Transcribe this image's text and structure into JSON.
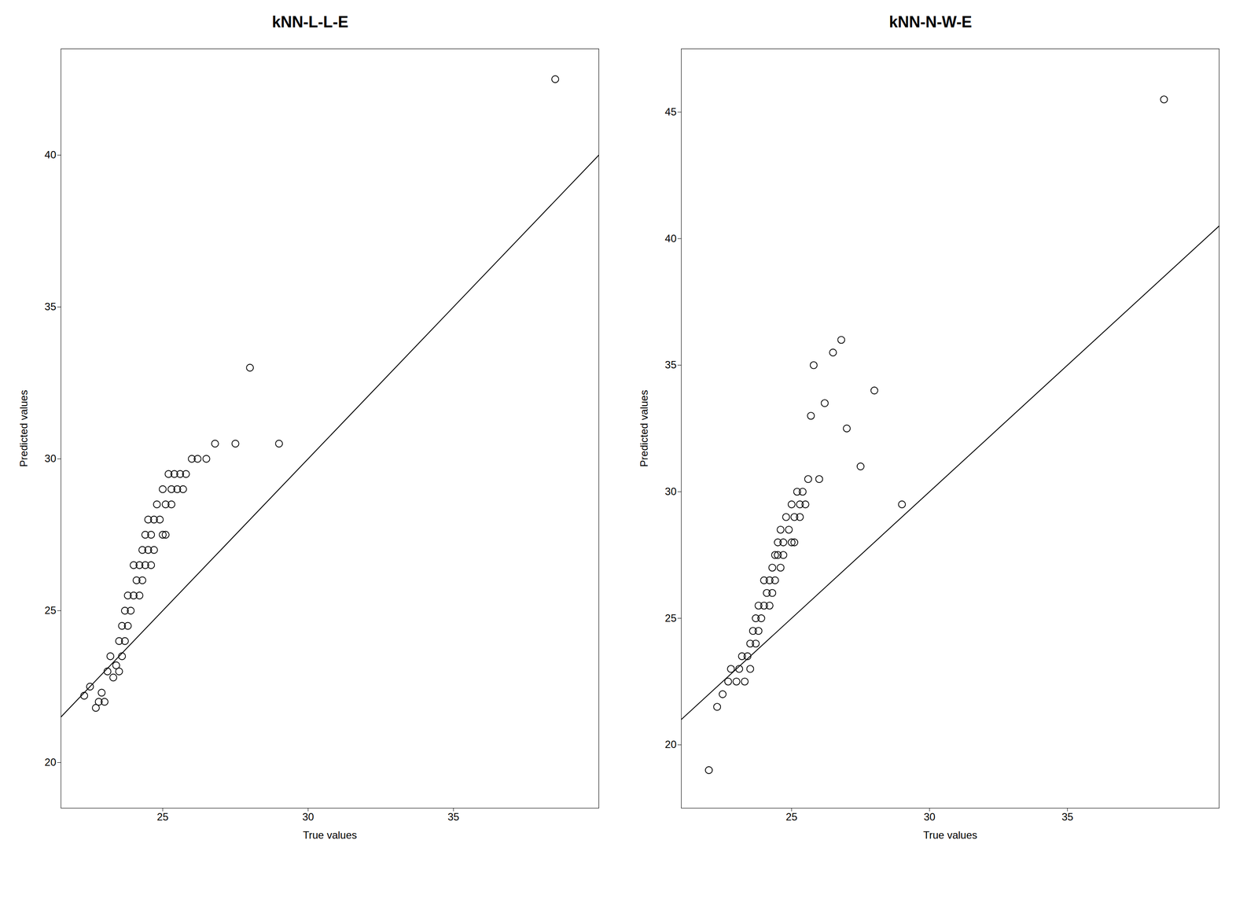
{
  "chart_data": [
    {
      "type": "scatter",
      "title": "kNN-L-L-E",
      "xlabel": "True values",
      "ylabel": "Predicted values",
      "color": "#000000",
      "grid": false,
      "xlim": [
        21.5,
        40.0
      ],
      "ylim": [
        18.5,
        43.5
      ],
      "xticks": [
        25,
        30,
        35
      ],
      "yticks": [
        20,
        25,
        30,
        35,
        40
      ],
      "line_x": [
        21.5,
        40.0
      ],
      "line_y": [
        21.5,
        40.0
      ],
      "x": [
        22.3,
        22.5,
        22.7,
        22.8,
        22.9,
        23.0,
        23.1,
        23.2,
        23.3,
        23.4,
        23.5,
        23.5,
        23.6,
        23.6,
        23.7,
        23.7,
        23.8,
        23.8,
        23.9,
        24.0,
        24.0,
        24.1,
        24.2,
        24.2,
        24.3,
        24.3,
        24.4,
        24.4,
        24.5,
        24.5,
        24.6,
        24.6,
        24.7,
        24.7,
        24.8,
        24.9,
        25.0,
        25.0,
        25.1,
        25.1,
        25.2,
        25.3,
        25.3,
        25.4,
        25.5,
        25.6,
        25.7,
        25.8,
        26.0,
        26.2,
        26.5,
        26.8,
        27.5,
        28.0,
        29.0,
        38.5
      ],
      "values": [
        22.2,
        22.5,
        21.8,
        22.0,
        22.3,
        22.0,
        23.0,
        23.5,
        22.8,
        23.2,
        23.0,
        24.0,
        23.5,
        24.5,
        24.0,
        25.0,
        24.5,
        25.5,
        25.0,
        25.5,
        26.5,
        26.0,
        26.5,
        25.5,
        27.0,
        26.0,
        27.5,
        26.5,
        27.0,
        28.0,
        26.5,
        27.5,
        28.0,
        27.0,
        28.5,
        28.0,
        27.5,
        29.0,
        28.5,
        27.5,
        29.5,
        29.0,
        28.5,
        29.5,
        29.0,
        29.5,
        29.0,
        29.5,
        30.0,
        30.0,
        30.0,
        30.5,
        30.5,
        33.0,
        30.5,
        42.5
      ]
    },
    {
      "type": "scatter",
      "title": "kNN-N-W-E",
      "xlabel": "True values",
      "ylabel": "Predicted values",
      "color": "#000000",
      "grid": false,
      "xlim": [
        21.0,
        40.5
      ],
      "ylim": [
        17.5,
        47.5
      ],
      "xticks": [
        25,
        30,
        35
      ],
      "yticks": [
        20,
        25,
        30,
        35,
        40,
        45
      ],
      "line_x": [
        21.0,
        40.5
      ],
      "line_y": [
        21.0,
        40.5
      ],
      "x": [
        22.0,
        22.3,
        22.5,
        22.7,
        22.8,
        23.0,
        23.1,
        23.2,
        23.3,
        23.4,
        23.5,
        23.5,
        23.6,
        23.7,
        23.7,
        23.8,
        23.8,
        23.9,
        24.0,
        24.0,
        24.1,
        24.2,
        24.2,
        24.3,
        24.3,
        24.4,
        24.4,
        24.5,
        24.5,
        24.6,
        24.6,
        24.7,
        24.7,
        24.8,
        24.9,
        25.0,
        25.0,
        25.1,
        25.1,
        25.2,
        25.3,
        25.3,
        25.4,
        25.5,
        25.6,
        25.7,
        25.8,
        26.0,
        26.2,
        26.5,
        26.8,
        27.0,
        27.5,
        28.0,
        29.0,
        38.5
      ],
      "values": [
        19.0,
        21.5,
        22.0,
        22.5,
        23.0,
        22.5,
        23.0,
        23.5,
        22.5,
        23.5,
        23.0,
        24.0,
        24.5,
        25.0,
        24.0,
        25.5,
        24.5,
        25.0,
        25.5,
        26.5,
        26.0,
        26.5,
        25.5,
        27.0,
        26.0,
        27.5,
        26.5,
        27.5,
        28.0,
        27.0,
        28.5,
        28.0,
        27.5,
        29.0,
        28.5,
        28.0,
        29.5,
        29.0,
        28.0,
        30.0,
        29.5,
        29.0,
        30.0,
        29.5,
        30.5,
        33.0,
        35.0,
        30.5,
        33.5,
        35.5,
        36.0,
        32.5,
        31.0,
        34.0,
        29.5,
        45.5
      ]
    }
  ]
}
